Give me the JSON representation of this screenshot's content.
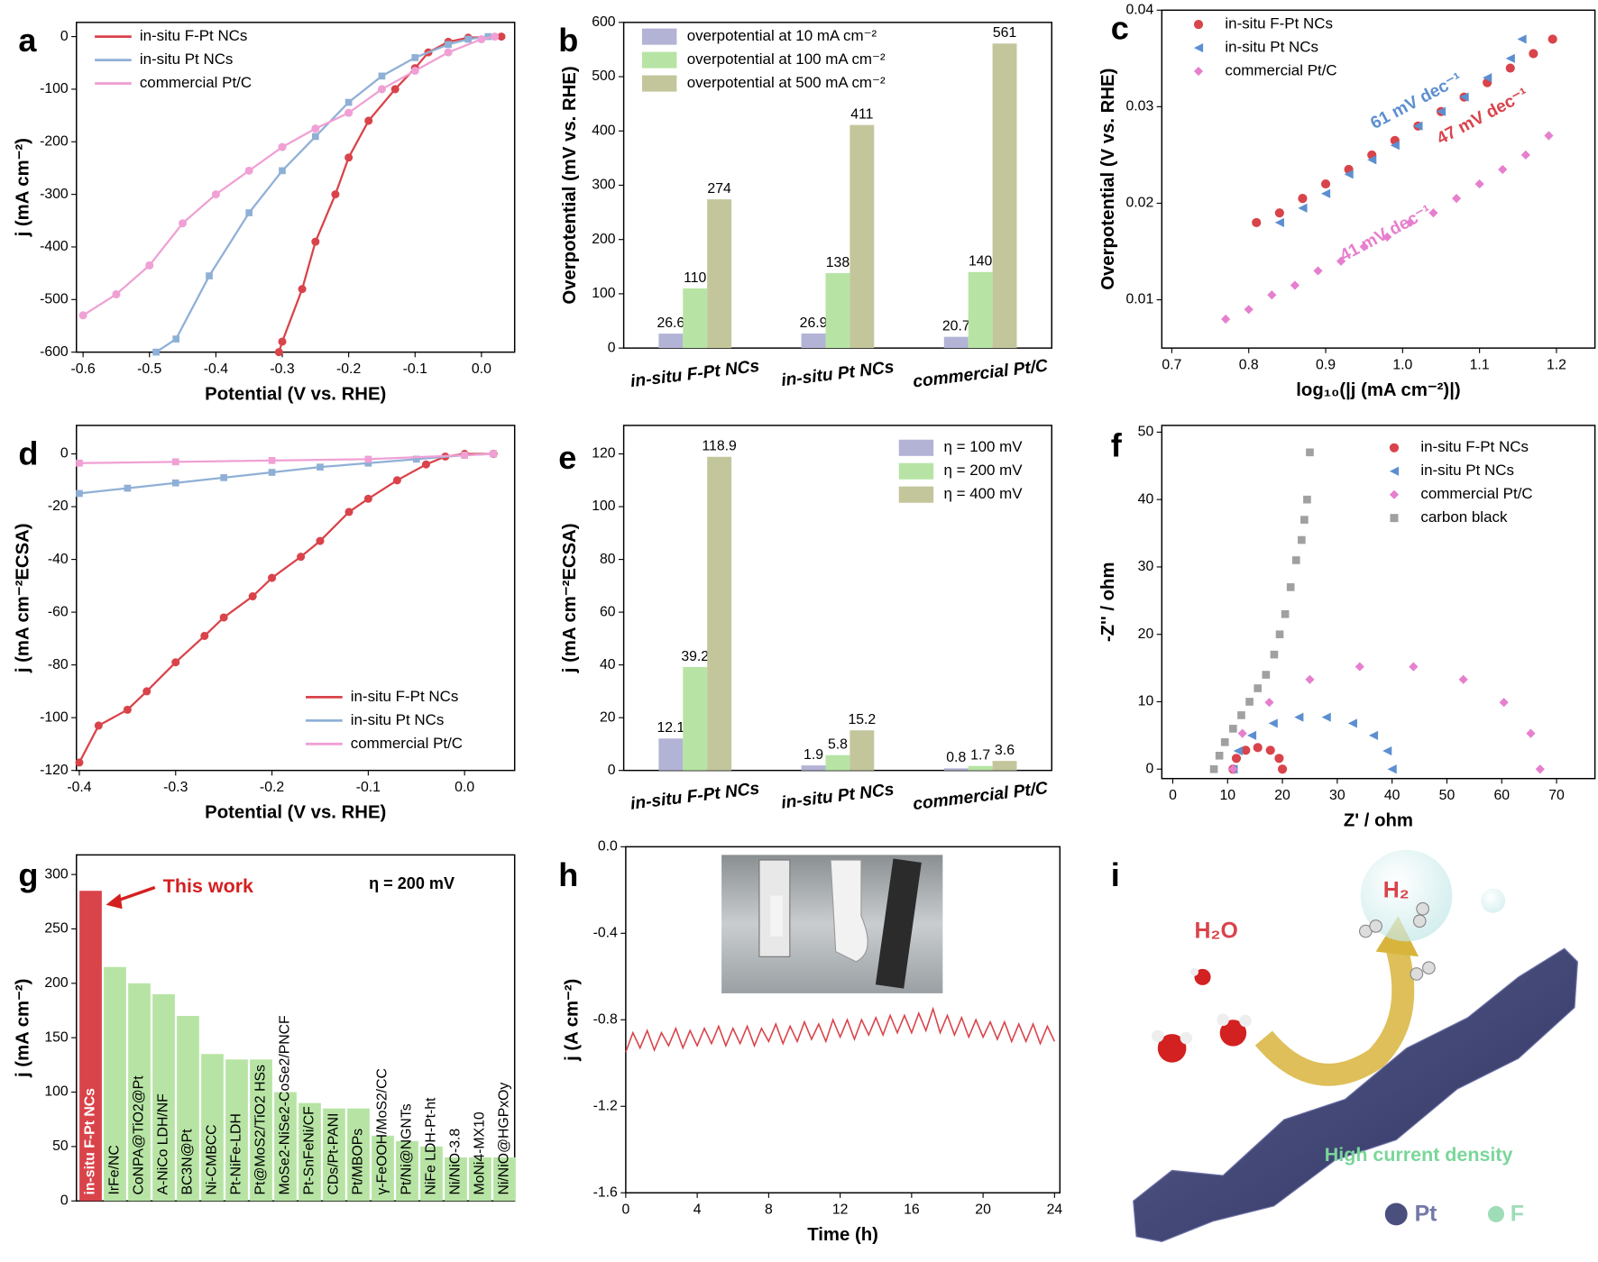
{
  "chart_data": [
    {
      "type": "line",
      "panel": "a",
      "xlabel": "Potential (V vs. RHE)",
      "ylabel": "j (mA cm⁻²)",
      "xlim": [
        -0.61,
        0.05
      ],
      "ylim": [
        -600,
        27
      ],
      "xticks": [
        -0.6,
        -0.5,
        -0.4,
        -0.3,
        -0.2,
        -0.1,
        {
          "value": 0,
          "label": "0.0"
        }
      ],
      "yticks": [
        -600,
        -500,
        -400,
        -300,
        -200,
        -100,
        0
      ],
      "legend": "upper left",
      "series": [
        {
          "name": "in-situ F-Pt NCs",
          "color": "#d9434a",
          "marker": "circle",
          "x": [
            -0.305,
            -0.3,
            -0.27,
            -0.25,
            -0.22,
            -0.2,
            -0.17,
            -0.13,
            -0.1,
            -0.08,
            -0.05,
            -0.02,
            0.03
          ],
          "values": [
            -600,
            -580,
            -480,
            -390,
            -300,
            -230,
            -160,
            -100,
            -60,
            -30,
            -10,
            -2,
            0
          ]
        },
        {
          "name": "in-situ Pt NCs",
          "color": "#8fb0d6",
          "marker": "square",
          "x": [
            -0.49,
            -0.46,
            -0.41,
            -0.35,
            -0.3,
            -0.25,
            -0.2,
            -0.15,
            -0.1,
            -0.05,
            -0.02,
            0.01
          ],
          "values": [
            -600,
            -575,
            -455,
            -335,
            -255,
            -190,
            -125,
            -75,
            -40,
            -15,
            -5,
            0
          ]
        },
        {
          "name": "commercial Pt/C",
          "color": "#f0a0d4",
          "marker": "circle",
          "x": [
            -0.6,
            -0.55,
            -0.5,
            -0.45,
            -0.4,
            -0.35,
            -0.3,
            -0.25,
            -0.2,
            -0.15,
            -0.1,
            -0.05,
            0,
            0.02
          ],
          "values": [
            -530,
            -490,
            -435,
            -355,
            -300,
            -255,
            -210,
            -175,
            -145,
            -100,
            -65,
            -30,
            -5,
            0
          ]
        }
      ]
    },
    {
      "type": "bar",
      "panel": "b",
      "ylabel": "Overpotential (mV vs. RHE)",
      "categories": [
        "in-situ F-Pt NCs",
        "in-situ Pt NCs",
        "commercial Pt/C"
      ],
      "ylim": [
        0,
        600
      ],
      "yticks": [
        0,
        100,
        200,
        300,
        400,
        500,
        600
      ],
      "legend": "upper left",
      "series": [
        {
          "name": "overpotential at 10 mA cm⁻²",
          "color": "#b3b3d6",
          "values": [
            26.6,
            26.9,
            20.7
          ]
        },
        {
          "name": "overpotential at 100 mA cm⁻²",
          "color": "#b7e4a4",
          "values": [
            110,
            138,
            140
          ]
        },
        {
          "name": "overpotential at 500 mA cm⁻²",
          "color": "#c3c69b",
          "values": [
            274,
            411,
            561
          ]
        }
      ]
    },
    {
      "type": "scatter",
      "panel": "c",
      "xlabel": "log₁₀(|j (mA cm⁻²)|)",
      "ylabel": "Overpotential (V vs. RHE)",
      "xlim": [
        0.687,
        1.25
      ],
      "ylim": [
        0.005,
        0.04
      ],
      "xticks": [
        0.7,
        0.8,
        0.9,
        {
          "value": 1,
          "label": "1.0"
        },
        1.1,
        1.2
      ],
      "yticks": [
        0.01,
        0.02,
        0.03,
        0.04
      ],
      "legend": "upper left",
      "series": [
        {
          "name": "in-situ F-Pt NCs",
          "color": "#d9434a",
          "marker": "circle",
          "x": [
            0.81,
            0.84,
            0.87,
            0.9,
            0.93,
            0.96,
            0.99,
            1.02,
            1.05,
            1.08,
            1.11,
            1.14,
            1.17,
            1.195
          ],
          "values": [
            0.018,
            0.019,
            0.0205,
            0.022,
            0.0235,
            0.025,
            0.0265,
            0.028,
            0.0295,
            0.031,
            0.0325,
            0.034,
            0.0355,
            0.037
          ]
        },
        {
          "name": "in-situ Pt NCs",
          "color": "#5c8fd0",
          "marker": "triangle",
          "x": [
            0.84,
            0.87,
            0.9,
            0.93,
            0.96,
            0.99,
            1.02,
            1.05,
            1.08,
            1.11,
            1.14,
            1.155
          ],
          "values": [
            0.018,
            0.0195,
            0.021,
            0.023,
            0.0245,
            0.026,
            0.028,
            0.0295,
            0.031,
            0.033,
            0.035,
            0.037
          ]
        },
        {
          "name": "commercial Pt/C",
          "color": "#e67fce",
          "marker": "diamond",
          "x": [
            0.77,
            0.8,
            0.83,
            0.86,
            0.89,
            0.92,
            0.95,
            0.98,
            1.01,
            1.04,
            1.07,
            1.1,
            1.13,
            1.16,
            1.19
          ],
          "values": [
            0.008,
            0.009,
            0.0105,
            0.0115,
            0.013,
            0.014,
            0.0155,
            0.0165,
            0.018,
            0.019,
            0.0205,
            0.022,
            0.0235,
            0.025,
            0.027
          ]
        }
      ],
      "annotations": [
        {
          "text": "61 mV dec⁻¹",
          "color": "#5c8fd0"
        },
        {
          "text": "47 mV dec⁻¹",
          "color": "#d9434a"
        },
        {
          "text": "41 mV dec⁻¹",
          "color": "#e67fce"
        }
      ]
    },
    {
      "type": "line",
      "panel": "d",
      "xlabel": "Potential (V vs. RHE)",
      "ylabel": "j (mA cm⁻²ECSA)",
      "xlim": [
        -0.403,
        0.052
      ],
      "ylim": [
        -120,
        10.8
      ],
      "xticks": [
        -0.4,
        -0.3,
        -0.2,
        -0.1,
        {
          "value": 0,
          "label": "0.0"
        }
      ],
      "yticks": [
        -120,
        -100,
        -80,
        -60,
        -40,
        -20,
        0
      ],
      "legend": "lower right",
      "series": [
        {
          "name": "in-situ F-Pt NCs",
          "color": "#d9434a",
          "marker": "circle",
          "x": [
            -0.4,
            -0.38,
            -0.35,
            -0.33,
            -0.3,
            -0.27,
            -0.25,
            -0.22,
            -0.2,
            -0.17,
            -0.15,
            -0.12,
            -0.1,
            -0.07,
            -0.04,
            -0.02,
            0,
            0.03
          ],
          "values": [
            -117,
            -103,
            -97,
            -90,
            -79,
            -69,
            -62,
            -54,
            -47,
            -39,
            -33,
            -22,
            -17,
            -10,
            -4,
            -1,
            0,
            0
          ]
        },
        {
          "name": "in-situ Pt NCs",
          "color": "#8fb0d6",
          "marker": "square",
          "x": [
            -0.4,
            -0.35,
            -0.3,
            -0.25,
            -0.2,
            -0.15,
            -0.1,
            -0.05,
            0,
            0.03
          ],
          "values": [
            -15,
            -13,
            -11,
            -9,
            -7,
            -5,
            -3.5,
            -2,
            -0.5,
            0
          ]
        },
        {
          "name": "commercial Pt/C",
          "color": "#f0a0d4",
          "marker": "square",
          "x": [
            -0.4,
            -0.3,
            -0.2,
            -0.1,
            0,
            0.03
          ],
          "values": [
            -3.5,
            -3,
            -2.5,
            -2,
            -0.5,
            0
          ]
        }
      ]
    },
    {
      "type": "bar",
      "panel": "e",
      "ylabel": "j (mA cm⁻²ECSA)",
      "categories": [
        "in-situ F-Pt NCs",
        "in-situ Pt NCs",
        "commercial Pt/C"
      ],
      "ylim": [
        0,
        130.8
      ],
      "yticks": [
        0,
        20,
        40,
        60,
        80,
        100,
        120
      ],
      "legend": "upper right",
      "series": [
        {
          "name": "η = 100 mV",
          "color": "#b3b3d6",
          "values": [
            12.1,
            1.9,
            0.8
          ]
        },
        {
          "name": "η = 200 mV",
          "color": "#b7e4a4",
          "values": [
            39.2,
            5.8,
            1.7
          ]
        },
        {
          "name": "η = 400 mV",
          "color": "#c3c69b",
          "values": [
            118.9,
            15.2,
            3.6
          ]
        }
      ]
    },
    {
      "type": "scatter",
      "panel": "f",
      "xlabel": "Z' / ohm",
      "ylabel": "-Z'' / ohm",
      "xlim": [
        -2,
        77
      ],
      "ylim": [
        -1.4,
        51
      ],
      "xticks": [
        0,
        10,
        20,
        30,
        40,
        50,
        60,
        70
      ],
      "yticks": [
        0,
        10,
        20,
        30,
        40,
        50
      ],
      "legend": "upper right",
      "series": [
        {
          "name": "in-situ F-Pt NCs",
          "color": "#d9434a",
          "marker": "circle",
          "x": [
            11,
            11.6,
            13.3,
            15.5,
            17.8,
            19.4,
            20
          ],
          "values": [
            0,
            1.6,
            2.8,
            3.2,
            2.8,
            1.6,
            0
          ]
        },
        {
          "name": "in-situ Pt NCs",
          "color": "#5c8fd0",
          "marker": "triangle",
          "x": [
            11,
            11.9,
            14.4,
            18.3,
            23,
            28,
            32.8,
            36.6,
            39.1,
            40
          ],
          "values": [
            0,
            2.7,
            5,
            6.8,
            7.7,
            7.7,
            6.8,
            5,
            2.7,
            0
          ]
        },
        {
          "name": "commercial Pt/C",
          "color": "#e67fce",
          "marker": "diamond",
          "x": [
            11,
            12.7,
            17.6,
            25,
            34.1,
            43.9,
            53,
            60.4,
            65.3,
            67
          ],
          "values": [
            0,
            5.3,
            9.9,
            13.3,
            15.2,
            15.2,
            13.3,
            9.9,
            5.3,
            0
          ]
        },
        {
          "name": "carbon black",
          "color": "#a0a0a0",
          "marker": "square",
          "x": [
            7.5,
            8.5,
            9.5,
            11,
            12.5,
            14,
            15.5,
            17,
            18.5,
            19.5,
            20.5,
            21.5,
            22.5,
            23.5,
            24,
            24.5,
            25
          ],
          "values": [
            0,
            2,
            4,
            6,
            8,
            10,
            12,
            14,
            17,
            20,
            23,
            27,
            31,
            34,
            37,
            40,
            47
          ]
        }
      ]
    },
    {
      "type": "bar",
      "panel": "g",
      "ylabel": "j (mA cm⁻²)",
      "categories": [
        "in-situ F-Pt NCs",
        "IrFe/NC",
        "CoNPA@TiO2@Pt",
        "A-NiCo LDH/NF",
        "BC3N@Pt",
        "Ni-CMBCC",
        "Pt-NiFe-LDH",
        "Pt@MoS2/TiO2 HSs",
        "MoSe2-NiSe2-CoSe2/PNCF",
        "Pt-SnFeNi/CF",
        "CDs/Pt-PANI",
        "Pt/MBOPs",
        "γ-FeOOH/MoS2/CC",
        "Pt/Ni@NGNTs",
        "NiFe LDH-Pt-ht",
        "Ni/NiO-3.8",
        "MoNi4-MX10",
        "Ni/NiO@HGPxOy"
      ],
      "values": [
        285,
        215,
        200,
        190,
        170,
        135,
        130,
        130,
        100,
        90,
        85,
        85,
        60,
        55,
        50,
        40,
        40,
        40
      ],
      "colors": [
        "#d9434a",
        "#b7e4a4",
        "#b7e4a4",
        "#b7e4a4",
        "#b7e4a4",
        "#b7e4a4",
        "#b7e4a4",
        "#b7e4a4",
        "#b7e4a4",
        "#b7e4a4",
        "#b7e4a4",
        "#b7e4a4",
        "#b7e4a4",
        "#b7e4a4",
        "#b7e4a4",
        "#b7e4a4",
        "#b7e4a4",
        "#b7e4a4"
      ],
      "ylim": [
        0,
        318
      ],
      "yticks": [
        0,
        50,
        100,
        150,
        200,
        250,
        300
      ],
      "annotations": [
        {
          "text": "This work",
          "color": "#d42020"
        },
        {
          "text": "η = 200 mV",
          "color": "#000000"
        }
      ]
    },
    {
      "type": "line",
      "panel": "h",
      "xlabel": "Time (h)",
      "ylabel": "j (A cm⁻²)",
      "xlim": [
        0,
        24.3
      ],
      "ylim": [
        -1.6,
        0
      ],
      "xticks": [
        0,
        4,
        8,
        12,
        16,
        20,
        24
      ],
      "yticks": [
        {
          "value": 0,
          "label": "0.0"
        },
        -0.4,
        -0.8,
        -1.2,
        -1.6
      ],
      "series": [
        {
          "color": "#d9434a",
          "x": [
            0,
            0.4,
            0.8,
            1.2,
            1.6,
            2,
            2.4,
            2.8,
            3.2,
            3.6,
            4,
            4.4,
            4.8,
            5.2,
            5.6,
            6,
            6.4,
            6.8,
            7.2,
            7.6,
            8,
            8.4,
            8.8,
            9.2,
            9.6,
            10,
            10.4,
            10.8,
            11.2,
            11.6,
            12,
            12.4,
            12.8,
            13.2,
            13.6,
            14,
            14.4,
            14.8,
            15.2,
            15.6,
            16,
            16.4,
            16.8,
            17.2,
            17.6,
            18,
            18.4,
            18.8,
            19.2,
            19.6,
            20,
            20.4,
            20.8,
            21.2,
            21.6,
            22,
            22.4,
            22.8,
            23.2,
            23.6,
            24
          ],
          "values": [
            -0.95,
            -0.86,
            -0.93,
            -0.85,
            -0.94,
            -0.86,
            -0.92,
            -0.84,
            -0.93,
            -0.85,
            -0.92,
            -0.84,
            -0.91,
            -0.83,
            -0.92,
            -0.84,
            -0.91,
            -0.83,
            -0.92,
            -0.84,
            -0.9,
            -0.82,
            -0.91,
            -0.83,
            -0.9,
            -0.81,
            -0.89,
            -0.82,
            -0.9,
            -0.8,
            -0.88,
            -0.8,
            -0.89,
            -0.8,
            -0.87,
            -0.79,
            -0.87,
            -0.78,
            -0.86,
            -0.78,
            -0.86,
            -0.77,
            -0.85,
            -0.75,
            -0.86,
            -0.78,
            -0.87,
            -0.79,
            -0.88,
            -0.8,
            -0.88,
            -0.81,
            -0.89,
            -0.81,
            -0.9,
            -0.82,
            -0.9,
            -0.82,
            -0.91,
            -0.83,
            -0.9
          ]
        }
      ]
    },
    {
      "type": "diagram",
      "panel": "i",
      "labels": [
        "H₂O",
        "H₂",
        "High current density",
        "Pt",
        "F"
      ]
    }
  ]
}
